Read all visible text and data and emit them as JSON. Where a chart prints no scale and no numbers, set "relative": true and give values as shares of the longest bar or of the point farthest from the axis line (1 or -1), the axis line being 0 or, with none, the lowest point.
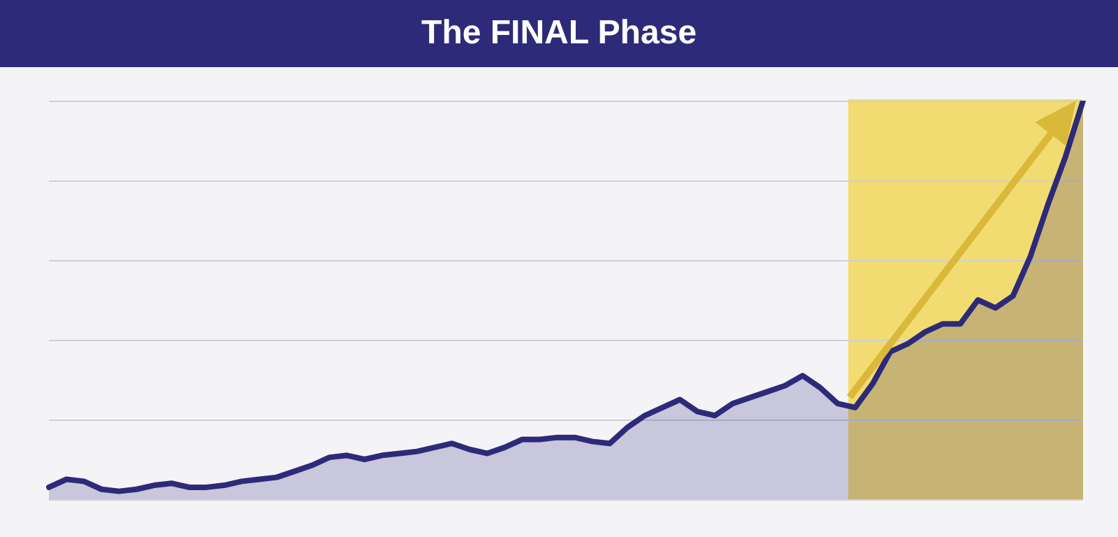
{
  "chart_data": {
    "type": "area",
    "title": "The FINAL Phase",
    "relative": true,
    "grid": "y",
    "tick_labels": false,
    "legend": false,
    "categories": [
      null,
      null,
      null,
      null,
      null,
      null,
      null,
      null,
      null,
      null,
      null,
      null,
      null,
      null,
      null,
      null,
      null,
      null,
      null,
      null,
      null,
      null,
      null,
      null,
      null,
      null,
      null,
      null,
      null,
      null,
      null,
      null,
      null,
      null,
      null,
      null,
      null,
      null,
      null,
      null,
      null,
      null,
      null,
      null,
      null,
      null,
      null,
      null,
      null,
      null,
      null,
      null,
      null,
      null,
      null,
      null,
      null,
      null,
      null,
      null
    ],
    "series": [
      {
        "color": "#2e2a7a",
        "values": [
          0.03,
          0.05,
          0.045,
          0.025,
          0.02,
          0.025,
          0.035,
          0.04,
          0.03,
          0.03,
          0.035,
          0.045,
          0.05,
          0.055,
          0.07,
          0.085,
          0.105,
          0.11,
          0.1,
          0.11,
          0.115,
          0.12,
          0.13,
          0.14,
          0.125,
          0.115,
          0.13,
          0.15,
          0.15,
          0.155,
          0.155,
          0.145,
          0.14,
          0.18,
          0.21,
          0.23,
          0.25,
          0.22,
          0.21,
          0.24,
          0.255,
          0.27,
          0.285,
          0.31,
          0.28,
          0.24,
          0.23,
          0.29,
          0.37,
          0.39,
          0.42,
          0.44,
          0.44,
          0.5,
          0.48,
          0.51,
          0.61,
          0.74,
          0.86,
          1
        ]
      }
    ]
  }
}
